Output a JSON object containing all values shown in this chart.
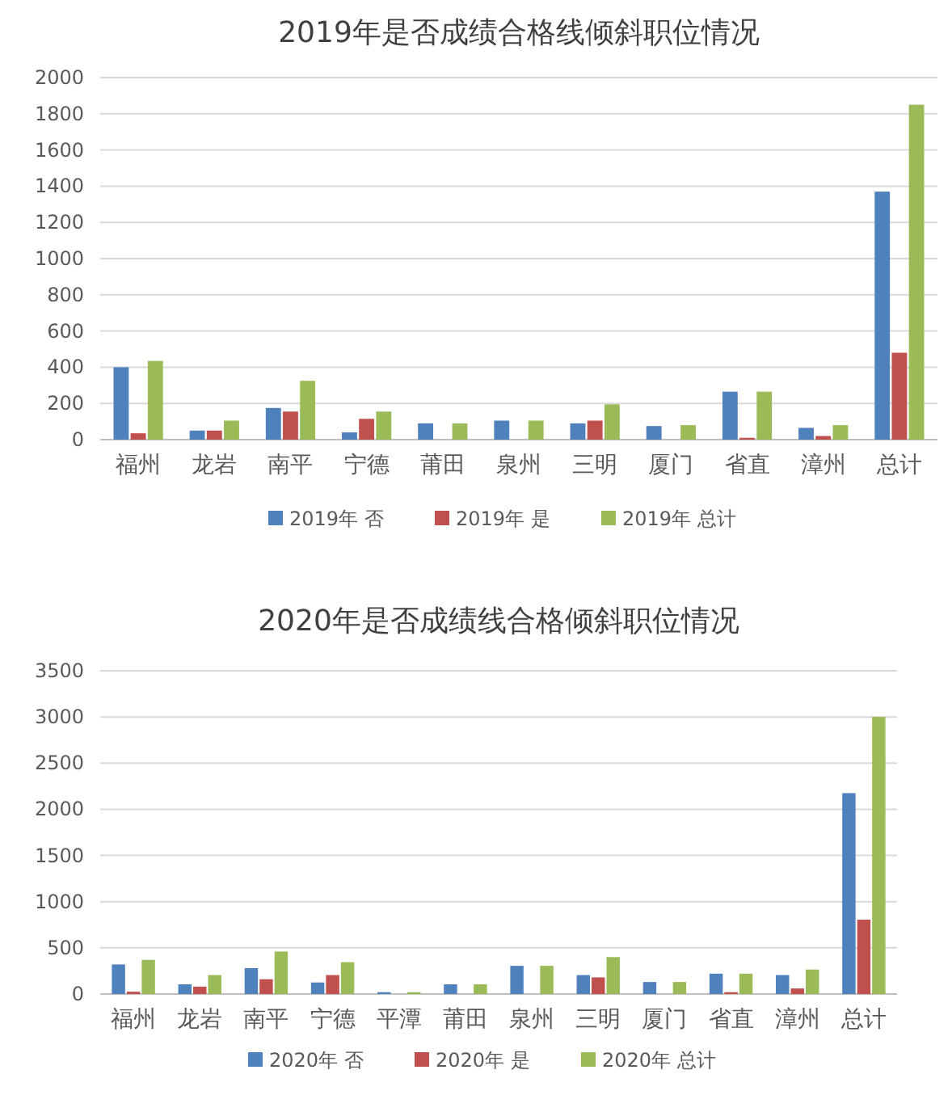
{
  "chart_data": [
    {
      "type": "bar",
      "title": "2019年是否成绩合格线倾斜职位情况",
      "categories": [
        "福州",
        "龙岩",
        "南平",
        "宁德",
        "莆田",
        "泉州",
        "三明",
        "厦门",
        "省直",
        "漳州",
        "总计"
      ],
      "series": [
        {
          "name": "2019年 否",
          "color": "#4f81bd",
          "values": [
            400,
            50,
            175,
            40,
            90,
            105,
            90,
            75,
            265,
            65,
            1370
          ]
        },
        {
          "name": "2019年 是",
          "color": "#c0504d",
          "values": [
            35,
            50,
            155,
            115,
            null,
            null,
            105,
            null,
            10,
            20,
            480
          ]
        },
        {
          "name": "2019年 总计",
          "color": "#9bbb59",
          "values": [
            435,
            105,
            325,
            155,
            90,
            105,
            195,
            80,
            265,
            80,
            1850
          ]
        }
      ],
      "ylim": [
        0,
        2000
      ],
      "yticks": [
        0,
        200,
        400,
        600,
        800,
        1000,
        1200,
        1400,
        1600,
        1800,
        2000
      ],
      "grid": "y",
      "legend": "bottom"
    },
    {
      "type": "bar",
      "title": "2020年是否成绩线合格倾斜职位情况",
      "categories": [
        "福州",
        "龙岩",
        "南平",
        "宁德",
        "平潭",
        "莆田",
        "泉州",
        "三明",
        "厦门",
        "省直",
        "漳州",
        "总计"
      ],
      "series": [
        {
          "name": "2020年 否",
          "color": "#4f81bd",
          "values": [
            320,
            105,
            280,
            125,
            20,
            105,
            305,
            205,
            130,
            220,
            205,
            2175
          ]
        },
        {
          "name": "2020年 是",
          "color": "#c0504d",
          "values": [
            25,
            80,
            160,
            205,
            null,
            null,
            null,
            180,
            null,
            20,
            60,
            805
          ]
        },
        {
          "name": "2020年 总计",
          "color": "#9bbb59",
          "values": [
            370,
            205,
            460,
            345,
            20,
            105,
            305,
            400,
            130,
            220,
            265,
            3000
          ]
        }
      ],
      "ylim": [
        0,
        3500
      ],
      "yticks": [
        0,
        500,
        1000,
        1500,
        2000,
        2500,
        3000,
        3500
      ],
      "grid": "y",
      "legend": "bottom"
    }
  ]
}
